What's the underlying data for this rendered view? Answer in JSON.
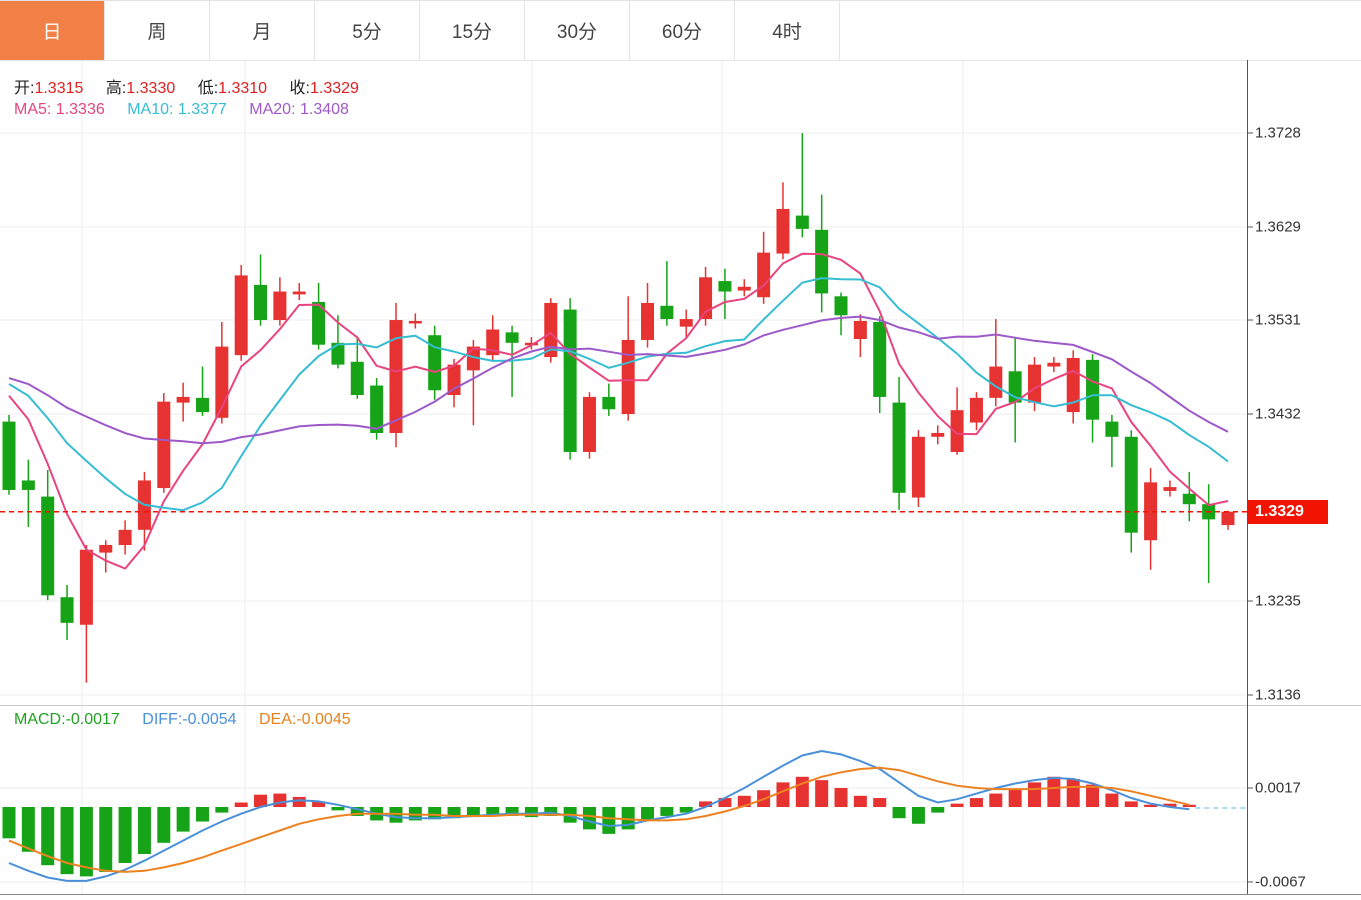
{
  "tabs": {
    "items": [
      {
        "key": "day",
        "label": "日",
        "active": true
      },
      {
        "key": "week",
        "label": "周",
        "active": false
      },
      {
        "key": "month",
        "label": "月",
        "active": false
      },
      {
        "key": "5min",
        "label": "5分",
        "active": false
      },
      {
        "key": "15min",
        "label": "15分",
        "active": false
      },
      {
        "key": "30min",
        "label": "30分",
        "active": false
      },
      {
        "key": "60min",
        "label": "60分",
        "active": false
      },
      {
        "key": "4hour",
        "label": "4时",
        "active": false
      }
    ]
  },
  "ohlc": {
    "open_label": "开:",
    "open": "1.3315",
    "high_label": "高:",
    "high": "1.3330",
    "low_label": "低:",
    "low": "1.3310",
    "close_label": "收:",
    "close": "1.3329"
  },
  "ma_info": {
    "ma5_label": "MA5:",
    "ma5": "1.3336",
    "ma10_label": "MA10:",
    "ma10": "1.3377",
    "ma20_label": "MA20:",
    "ma20": "1.3408"
  },
  "macd_info": {
    "macd_label": "MACD:",
    "macd": "-0.0017",
    "diff_label": "DIFF:",
    "diff": "-0.0054",
    "dea_label": "DEA:",
    "dea": "-0.0045"
  },
  "price_tag": "1.3329",
  "colors": {
    "up": "#e73232",
    "down": "#16a317",
    "ma5": "#e8447d",
    "ma10": "#36bdd2",
    "ma20": "#9d59c9",
    "diff": "#4a90d9",
    "dea": "#ee8220",
    "accent_tab": "#f08045",
    "current_price_line": "#f21400",
    "grid": "#ededed",
    "axis": "#555555",
    "dashed_tail": "#8fd0e4"
  },
  "chart_data": {
    "type": "candlestick+macd",
    "main": {
      "title": "",
      "y_ticks": [
        {
          "v": 1.3728,
          "label": "1.3728"
        },
        {
          "v": 1.3629,
          "label": "1.3629"
        },
        {
          "v": 1.3531,
          "label": "1.3531"
        },
        {
          "v": 1.3432,
          "label": "1.3432"
        },
        {
          "v": 1.3329,
          "label": "1.3329",
          "highlight": true
        },
        {
          "v": 1.3235,
          "label": "1.3235"
        },
        {
          "v": 1.3136,
          "label": "1.3136"
        }
      ],
      "current_price": 1.3329,
      "x_gridlines": [
        82,
        245,
        532,
        722,
        963
      ],
      "ma_periods": [
        5,
        10,
        20
      ],
      "prehistory_close": 1.3476,
      "candles": [
        [
          1.3424,
          1.3431,
          1.3347,
          1.3352
        ],
        [
          1.3362,
          1.3384,
          1.3313,
          1.3352
        ],
        [
          1.3345,
          1.3373,
          1.3236,
          1.3241
        ],
        [
          1.3239,
          1.3252,
          1.3194,
          1.3212
        ],
        [
          1.321,
          1.3294,
          1.3149,
          1.3289
        ],
        [
          1.3286,
          1.3299,
          1.3265,
          1.3294
        ],
        [
          1.3294,
          1.332,
          1.3284,
          1.331
        ],
        [
          1.331,
          1.3371,
          1.3288,
          1.3362
        ],
        [
          1.3354,
          1.3454,
          1.3349,
          1.3445
        ],
        [
          1.3444,
          1.3465,
          1.3424,
          1.345
        ],
        [
          1.3449,
          1.3482,
          1.343,
          1.3434
        ],
        [
          1.3428,
          1.3529,
          1.3422,
          1.3503
        ],
        [
          1.3494,
          1.3589,
          1.3488,
          1.3578
        ],
        [
          1.3568,
          1.36,
          1.3525,
          1.3531
        ],
        [
          1.3531,
          1.3576,
          1.3525,
          1.3561
        ],
        [
          1.3558,
          1.357,
          1.3552,
          1.3561
        ],
        [
          1.355,
          1.357,
          1.35,
          1.3505
        ],
        [
          1.3507,
          1.3536,
          1.348,
          1.3484
        ],
        [
          1.3487,
          1.3513,
          1.3448,
          1.3452
        ],
        [
          1.3462,
          1.347,
          1.3405,
          1.3412
        ],
        [
          1.3412,
          1.3549,
          1.3397,
          1.3531
        ],
        [
          1.3528,
          1.3538,
          1.3522,
          1.353
        ],
        [
          1.3515,
          1.3525,
          1.3447,
          1.3457
        ],
        [
          1.3452,
          1.349,
          1.3439,
          1.3484
        ],
        [
          1.3478,
          1.351,
          1.342,
          1.3503
        ],
        [
          1.3494,
          1.3536,
          1.3488,
          1.3521
        ],
        [
          1.3518,
          1.3525,
          1.345,
          1.3507
        ],
        [
          1.3505,
          1.3513,
          1.35,
          1.3507
        ],
        [
          1.3492,
          1.3554,
          1.3486,
          1.3549
        ],
        [
          1.3542,
          1.3554,
          1.3384,
          1.3392
        ],
        [
          1.3392,
          1.3455,
          1.3385,
          1.345
        ],
        [
          1.345,
          1.3464,
          1.343,
          1.3437
        ],
        [
          1.3432,
          1.3556,
          1.3425,
          1.351
        ],
        [
          1.351,
          1.357,
          1.3502,
          1.3549
        ],
        [
          1.3546,
          1.3593,
          1.3525,
          1.3532
        ],
        [
          1.3524,
          1.3542,
          1.3512,
          1.3532
        ],
        [
          1.3532,
          1.3587,
          1.3525,
          1.3576
        ],
        [
          1.3572,
          1.3585,
          1.3532,
          1.3561
        ],
        [
          1.3562,
          1.3574,
          1.3556,
          1.3566
        ],
        [
          1.3555,
          1.3624,
          1.3548,
          1.3602
        ],
        [
          1.3601,
          1.3676,
          1.3595,
          1.3648
        ],
        [
          1.3641,
          1.3728,
          1.3618,
          1.3627
        ],
        [
          1.3626,
          1.3663,
          1.3539,
          1.3559
        ],
        [
          1.3556,
          1.356,
          1.3515,
          1.3536
        ],
        [
          1.3511,
          1.3537,
          1.3492,
          1.353
        ],
        [
          1.3529,
          1.3535,
          1.3433,
          1.345
        ],
        [
          1.3444,
          1.3471,
          1.3331,
          1.3349
        ],
        [
          1.3344,
          1.3415,
          1.3334,
          1.3408
        ],
        [
          1.3408,
          1.342,
          1.34,
          1.3412
        ],
        [
          1.3392,
          1.346,
          1.3389,
          1.3436
        ],
        [
          1.3423,
          1.3455,
          1.3415,
          1.3449
        ],
        [
          1.3449,
          1.3532,
          1.344,
          1.3482
        ],
        [
          1.3477,
          1.3513,
          1.3402,
          1.3444
        ],
        [
          1.3444,
          1.3492,
          1.3435,
          1.3484
        ],
        [
          1.3482,
          1.3492,
          1.3476,
          1.3486
        ],
        [
          1.3434,
          1.3499,
          1.3422,
          1.3491
        ],
        [
          1.3489,
          1.3495,
          1.3402,
          1.3426
        ],
        [
          1.3424,
          1.3431,
          1.3376,
          1.3408
        ],
        [
          1.3408,
          1.3415,
          1.3286,
          1.3307
        ],
        [
          1.3299,
          1.3375,
          1.3268,
          1.336
        ],
        [
          1.3351,
          1.3362,
          1.3345,
          1.3355
        ],
        [
          1.3348,
          1.3371,
          1.3319,
          1.3337
        ],
        [
          1.3337,
          1.3358,
          1.3254,
          1.3321
        ],
        [
          1.3315,
          1.333,
          1.331,
          1.3329
        ]
      ]
    },
    "macd": {
      "y_ticks": [
        {
          "v": 0.0017,
          "label": "0.0017"
        },
        {
          "v": -0.0067,
          "label": "-0.0067"
        }
      ],
      "hist": [
        -0.0028,
        -0.004,
        -0.0052,
        -0.006,
        -0.0062,
        -0.0058,
        -0.005,
        -0.0042,
        -0.0032,
        -0.0022,
        -0.0013,
        -0.0005,
        0.0004,
        0.0011,
        0.0012,
        0.0009,
        0.0005,
        -0.0003,
        -0.0008,
        -0.0012,
        -0.0014,
        -0.0012,
        -0.0011,
        -0.001,
        -0.0009,
        -0.0008,
        -0.0008,
        -0.0009,
        -0.0008,
        -0.0014,
        -0.002,
        -0.0024,
        -0.002,
        -0.0012,
        -0.0008,
        -0.0005,
        0.0005,
        0.0008,
        0.001,
        0.0015,
        0.0022,
        0.0027,
        0.0024,
        0.0017,
        0.001,
        0.0008,
        -0.001,
        -0.0015,
        -0.0005,
        0.0003,
        0.0008,
        0.0012,
        0.0016,
        0.0022,
        0.0027,
        0.0025,
        0.002,
        0.0012,
        0.0005,
        0.0002,
        0.0003,
        0.0002,
        null,
        null
      ],
      "diff": [
        -0.005,
        -0.0057,
        -0.0063,
        -0.0066,
        -0.0066,
        -0.0062,
        -0.0056,
        -0.0048,
        -0.0039,
        -0.003,
        -0.0021,
        -0.0013,
        -0.0006,
        0.0,
        0.0004,
        0.0006,
        0.0005,
        0.0002,
        -0.0002,
        -0.0006,
        -0.0009,
        -0.001,
        -0.001,
        -0.0009,
        -0.0008,
        -0.0007,
        -0.0006,
        -0.0006,
        -0.0005,
        -0.0008,
        -0.0013,
        -0.0017,
        -0.0016,
        -0.0012,
        -0.0009,
        -0.0006,
        0.0,
        0.0008,
        0.0017,
        0.0027,
        0.0037,
        0.0046,
        0.005,
        0.0047,
        0.0041,
        0.0034,
        0.0022,
        0.001,
        0.0004,
        0.0007,
        0.0012,
        0.0017,
        0.0021,
        0.0024,
        0.0026,
        0.0025,
        0.0021,
        0.0015,
        0.0008,
        0.0003,
        0.0,
        -0.0002,
        null,
        null
      ],
      "dea": [
        -0.003,
        -0.0037,
        -0.0044,
        -0.005,
        -0.0054,
        -0.0057,
        -0.0058,
        -0.0057,
        -0.0054,
        -0.005,
        -0.0045,
        -0.0039,
        -0.0033,
        -0.0027,
        -0.0021,
        -0.0015,
        -0.0011,
        -0.0008,
        -0.0006,
        -0.0006,
        -0.0006,
        -0.0007,
        -0.0007,
        -0.0008,
        -0.0008,
        -0.0008,
        -0.0007,
        -0.0007,
        -0.0007,
        -0.0007,
        -0.0008,
        -0.001,
        -0.0011,
        -0.0012,
        -0.0012,
        -0.0011,
        -0.0008,
        -0.0004,
        0.0001,
        0.0007,
        0.0014,
        0.0021,
        0.0027,
        0.0031,
        0.0034,
        0.0035,
        0.0033,
        0.0028,
        0.0023,
        0.0019,
        0.0017,
        0.0016,
        0.0016,
        0.0016,
        0.0017,
        0.0018,
        0.0018,
        0.0017,
        0.0014,
        0.001,
        0.0006,
        0.0002,
        null,
        null
      ]
    }
  }
}
